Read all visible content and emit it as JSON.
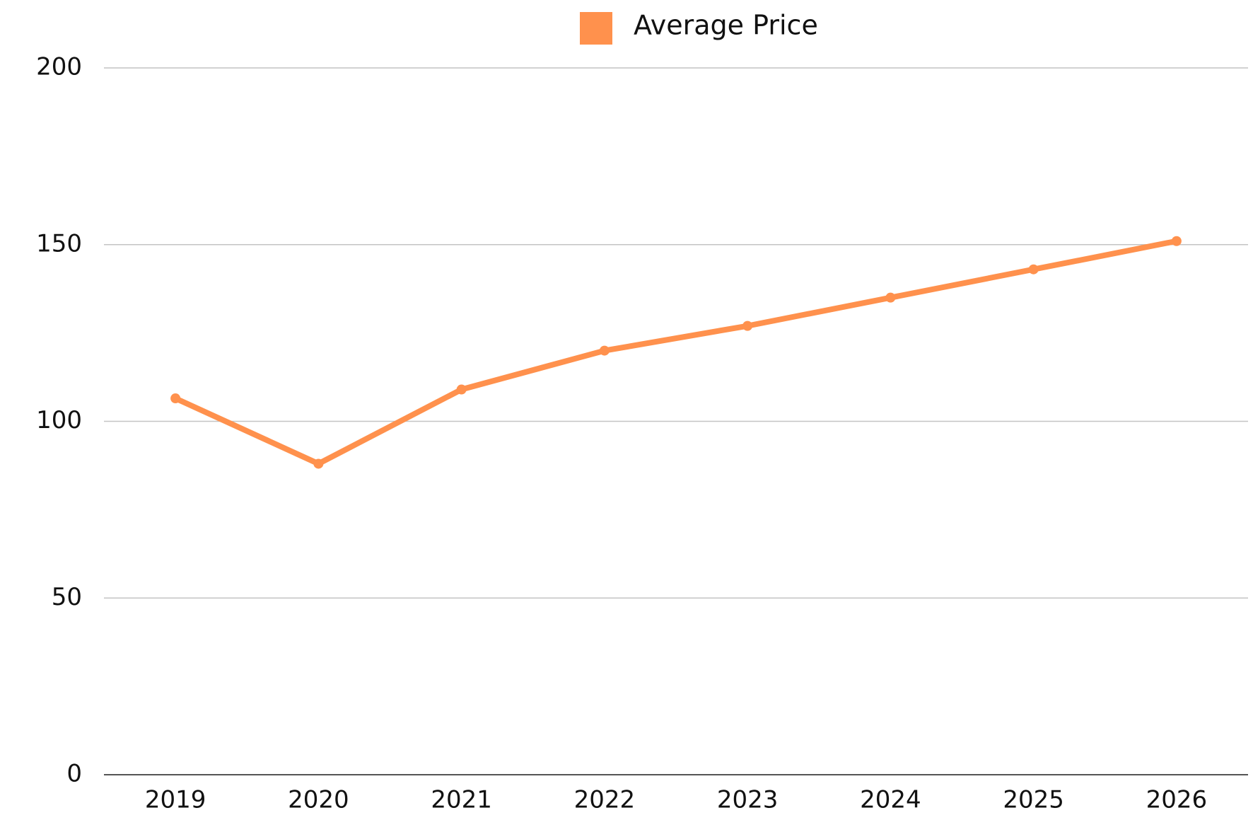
{
  "chart_data": {
    "type": "line",
    "categories": [
      "2019",
      "2020",
      "2021",
      "2022",
      "2023",
      "2024",
      "2025",
      "2026"
    ],
    "series": [
      {
        "name": "Average Price",
        "color": "#ff914d",
        "values": [
          106.5,
          88,
          109,
          120,
          127,
          135,
          143,
          151
        ]
      }
    ],
    "ylim": [
      0,
      200
    ],
    "yticks": [
      0,
      50,
      100,
      150,
      200
    ],
    "grid": true,
    "legend": "top"
  }
}
